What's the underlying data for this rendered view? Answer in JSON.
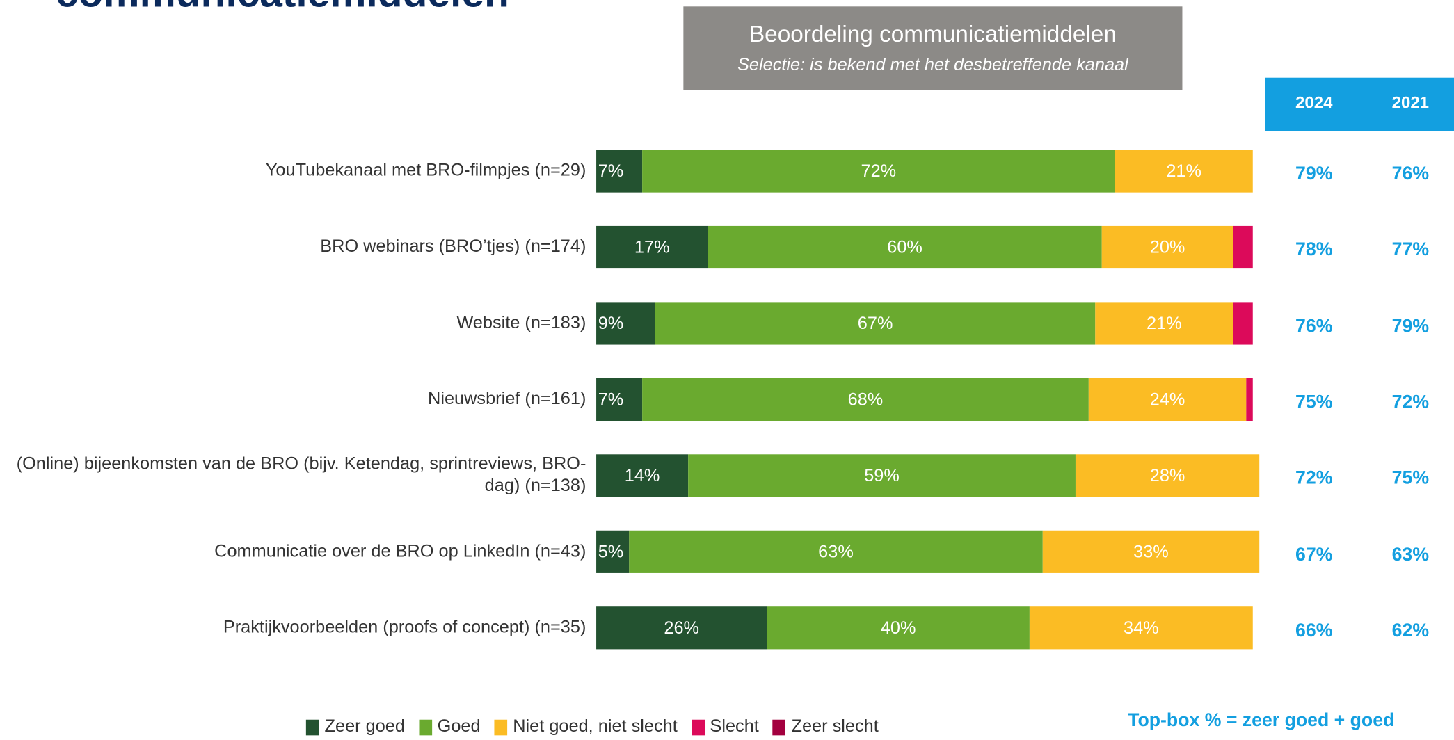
{
  "page_title": "communicatiemiddelen",
  "chart_data": {
    "type": "stacked_bar_horizontal",
    "title": "Beoordeling communicatiemiddelen",
    "subtitle": "Selectie: is bekend met het desbetreffende kanaal",
    "categories": [
      "YouTubekanaal met BRO-filmpjes (n=29)",
      "BRO webinars (BRO’tjes) (n=174)",
      "Website (n=183)",
      "Nieuwsbrief (n=161)",
      "(Online) bijeenkomsten van de BRO (bijv. Ketendag, sprintreviews, BRO-dag) (n=138)",
      "Communicatie over de BRO op LinkedIn (n=43)",
      "Praktijkvoorbeelden (proofs of concept) (n=35)"
    ],
    "xlim": [
      0,
      100
    ],
    "series": [
      {
        "name": "Zeer goed",
        "color": "#235230",
        "values": [
          7,
          17,
          9,
          7,
          14,
          5,
          26
        ],
        "value_labels": [
          "7%",
          "17%",
          "9%",
          "7%",
          "14%",
          "5%",
          "26%"
        ]
      },
      {
        "name": "Goed",
        "color": "#6aaa2f",
        "values": [
          72,
          60,
          67,
          68,
          59,
          63,
          40
        ],
        "value_labels": [
          "72%",
          "60%",
          "67%",
          "68%",
          "59%",
          "63%",
          "40%"
        ]
      },
      {
        "name": "Niet goed, niet slecht",
        "color": "#fbbc24",
        "values": [
          21,
          20,
          21,
          24,
          28,
          33,
          34
        ],
        "value_labels": [
          "21%",
          "20%",
          "21%",
          "24%",
          "28%",
          "33%",
          "34%"
        ]
      },
      {
        "name": "Slecht",
        "color": "#dc0a5a",
        "values": [
          0,
          3,
          3,
          1,
          0,
          0,
          0
        ]
      },
      {
        "name": "Zeer slecht",
        "color": "#a3003f",
        "values": [
          0,
          0,
          0,
          0,
          0,
          0,
          0
        ]
      }
    ],
    "legend": "bottom"
  },
  "top_box": {
    "columns": [
      "2024",
      "2021"
    ],
    "rows": [
      [
        "79%",
        "76%"
      ],
      [
        "78%",
        "77%"
      ],
      [
        "76%",
        "79%"
      ],
      [
        "75%",
        "72%"
      ],
      [
        "72%",
        "75%"
      ],
      [
        "67%",
        "63%"
      ],
      [
        "66%",
        "62%"
      ]
    ],
    "note": "Top-box % = zeer goed + goed"
  }
}
